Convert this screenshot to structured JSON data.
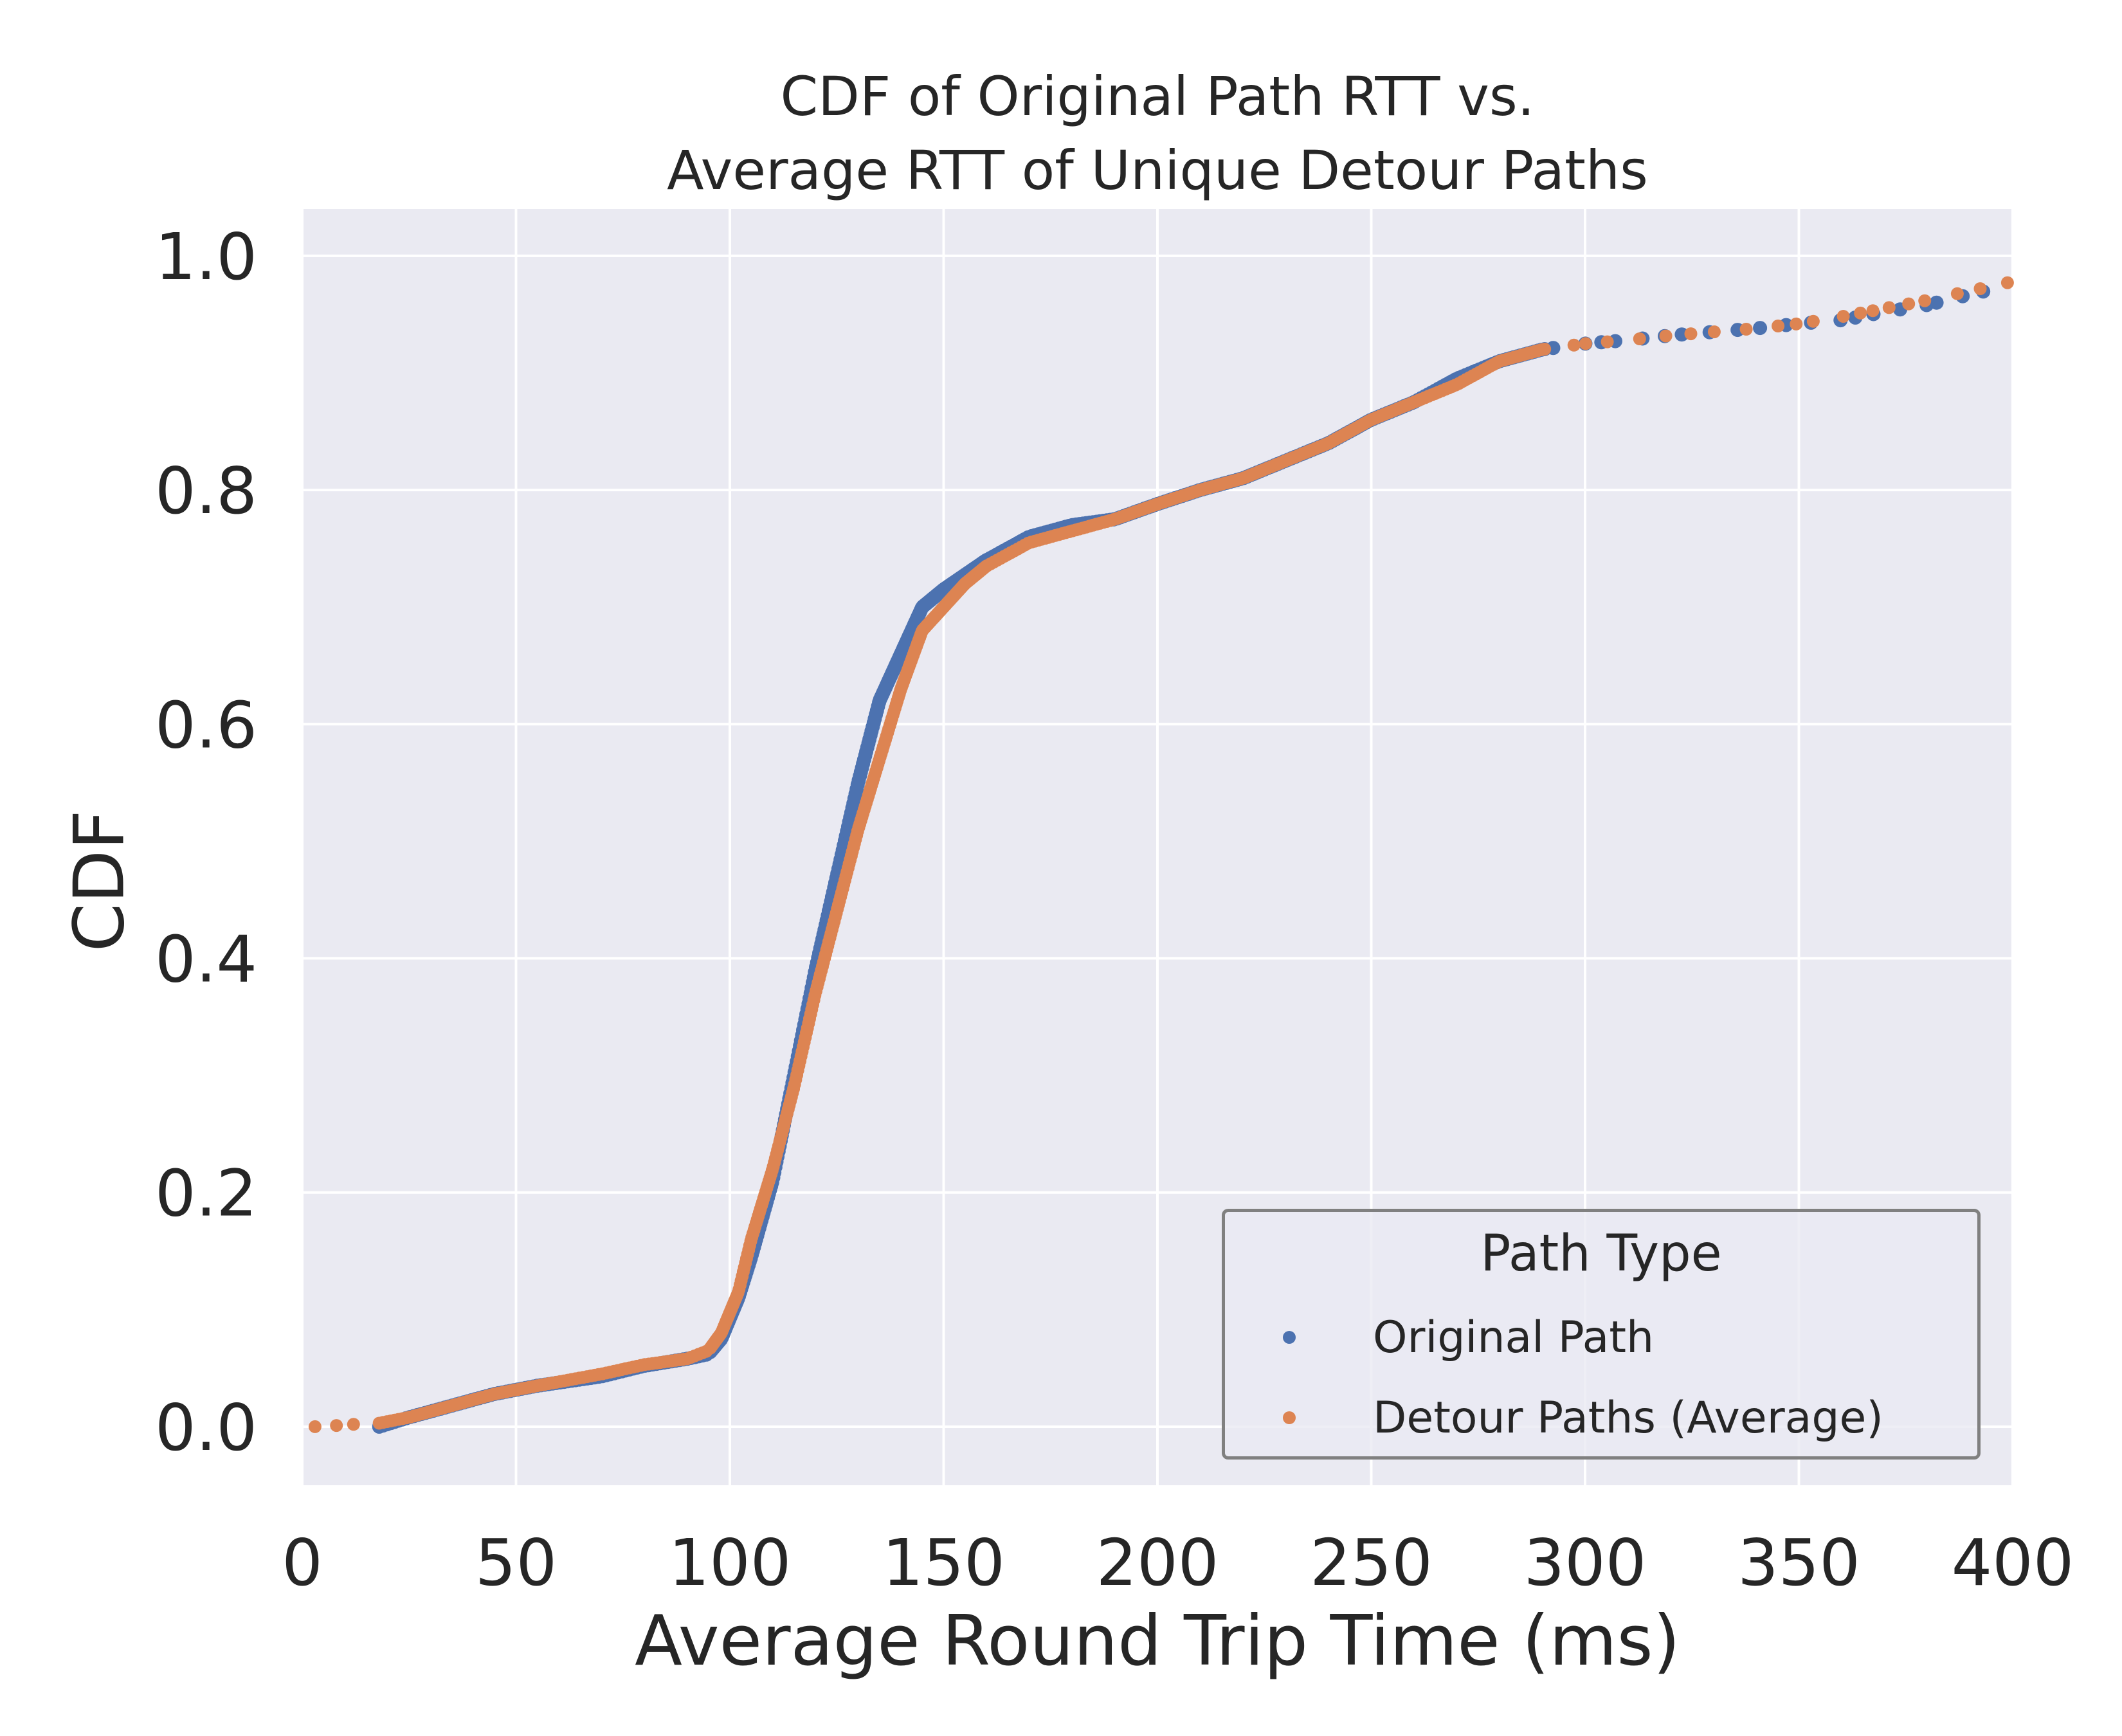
{
  "chart_data": {
    "type": "scatter",
    "title_line1": "CDF of Original Path RTT vs.",
    "title_line2": "Average RTT of Unique Detour Paths",
    "xlabel": "Average Round Trip Time (ms)",
    "ylabel": "CDF",
    "xlim": [
      0,
      400
    ],
    "ylim": [
      -0.05,
      1.04
    ],
    "xticks": [
      0,
      50,
      100,
      150,
      200,
      250,
      300,
      350,
      400
    ],
    "xtick_labels": [
      "0",
      "50",
      "100",
      "150",
      "200",
      "250",
      "300",
      "350",
      "400"
    ],
    "yticks": [
      0.0,
      0.2,
      0.4,
      0.6,
      0.8,
      1.0
    ],
    "ytick_labels": [
      "0.0",
      "0.2",
      "0.4",
      "0.6",
      "0.8",
      "1.0"
    ],
    "grid": true,
    "legend_position": "lower-right",
    "legend_title": "Path Type",
    "background_color": "#eaeaf2",
    "series": [
      {
        "name": "Original Path",
        "color": "#4c72b0",
        "cdf_curve": [
          [
            18,
            0.0
          ],
          [
            25,
            0.008
          ],
          [
            35,
            0.018
          ],
          [
            45,
            0.028
          ],
          [
            55,
            0.035
          ],
          [
            70,
            0.043
          ],
          [
            80,
            0.052
          ],
          [
            90,
            0.058
          ],
          [
            95,
            0.062
          ],
          [
            98,
            0.075
          ],
          [
            102,
            0.11
          ],
          [
            105,
            0.145
          ],
          [
            110,
            0.21
          ],
          [
            115,
            0.3
          ],
          [
            120,
            0.39
          ],
          [
            125,
            0.47
          ],
          [
            130,
            0.55
          ],
          [
            135,
            0.62
          ],
          [
            140,
            0.66
          ],
          [
            145,
            0.7
          ],
          [
            150,
            0.715
          ],
          [
            160,
            0.74
          ],
          [
            170,
            0.76
          ],
          [
            180,
            0.77
          ],
          [
            190,
            0.775
          ],
          [
            200,
            0.788
          ],
          [
            210,
            0.8
          ],
          [
            220,
            0.81
          ],
          [
            230,
            0.825
          ],
          [
            240,
            0.84
          ],
          [
            250,
            0.86
          ],
          [
            260,
            0.875
          ],
          [
            270,
            0.895
          ],
          [
            280,
            0.91
          ],
          [
            290,
            0.92
          ],
          [
            300,
            0.925
          ],
          [
            310,
            0.928
          ],
          [
            320,
            0.932
          ],
          [
            330,
            0.935
          ],
          [
            340,
            0.938
          ],
          [
            350,
            0.942
          ],
          [
            360,
            0.945
          ],
          [
            370,
            0.952
          ],
          [
            380,
            0.958
          ],
          [
            390,
            0.967
          ],
          [
            400,
            0.975
          ]
        ]
      },
      {
        "name": "Detour Paths (Average)",
        "color": "#dd8452",
        "cdf_curve": [
          [
            3,
            0.0
          ],
          [
            8,
            0.001
          ],
          [
            12,
            0.002
          ],
          [
            18,
            0.003
          ],
          [
            25,
            0.008
          ],
          [
            35,
            0.018
          ],
          [
            45,
            0.028
          ],
          [
            55,
            0.035
          ],
          [
            70,
            0.045
          ],
          [
            80,
            0.053
          ],
          [
            90,
            0.058
          ],
          [
            95,
            0.065
          ],
          [
            98,
            0.08
          ],
          [
            102,
            0.115
          ],
          [
            105,
            0.16
          ],
          [
            110,
            0.22
          ],
          [
            115,
            0.29
          ],
          [
            120,
            0.37
          ],
          [
            125,
            0.44
          ],
          [
            130,
            0.51
          ],
          [
            135,
            0.57
          ],
          [
            140,
            0.63
          ],
          [
            145,
            0.68
          ],
          [
            150,
            0.7
          ],
          [
            155,
            0.72
          ],
          [
            160,
            0.735
          ],
          [
            170,
            0.755
          ],
          [
            180,
            0.765
          ],
          [
            190,
            0.775
          ],
          [
            200,
            0.788
          ],
          [
            210,
            0.8
          ],
          [
            220,
            0.81
          ],
          [
            230,
            0.825
          ],
          [
            240,
            0.84
          ],
          [
            250,
            0.86
          ],
          [
            260,
            0.875
          ],
          [
            270,
            0.89
          ],
          [
            280,
            0.91
          ],
          [
            290,
            0.92
          ],
          [
            300,
            0.925
          ],
          [
            310,
            0.928
          ],
          [
            320,
            0.932
          ],
          [
            330,
            0.935
          ],
          [
            340,
            0.938
          ],
          [
            350,
            0.942
          ],
          [
            360,
            0.948
          ],
          [
            370,
            0.955
          ],
          [
            380,
            0.962
          ],
          [
            390,
            0.97
          ],
          [
            400,
            0.978
          ]
        ]
      }
    ]
  }
}
